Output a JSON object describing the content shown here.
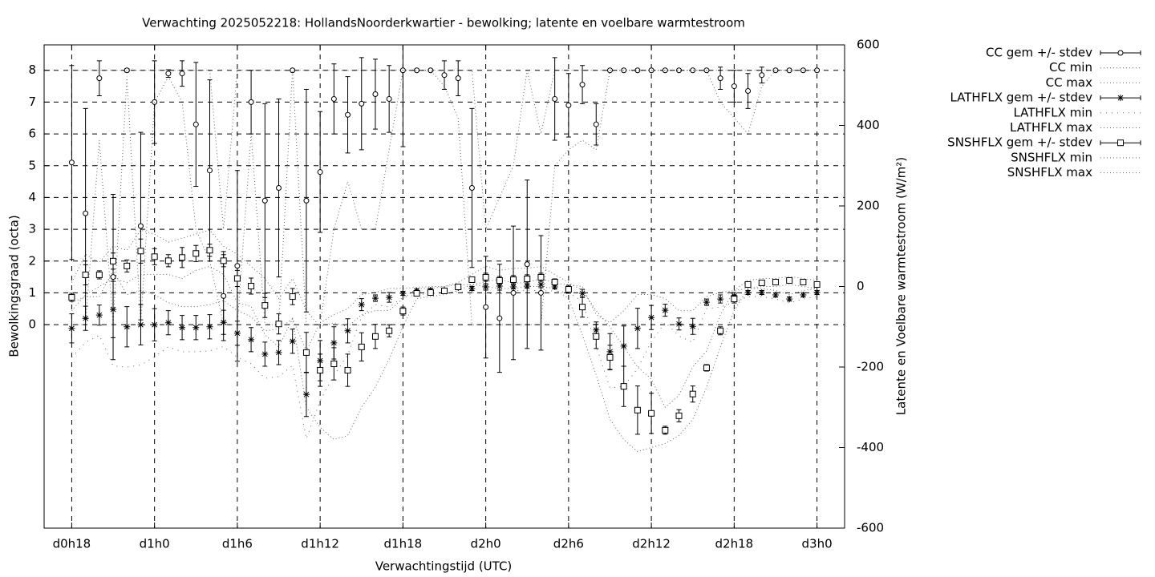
{
  "chart_data": {
    "type": "errorbar",
    "title": "Verwachting 2025052218: HollandsNoorderkwartier - bewolking; latente en voelbare warmtestroom",
    "x_label": "Verwachtingstijd (UTC)",
    "y_label": "Bewolkingsgraad (octa)",
    "y2_label": "Latente en Voelbare warmtestroom (W/m²)",
    "x": [
      18,
      19,
      20,
      21,
      22,
      23,
      24,
      25,
      26,
      27,
      28,
      29,
      30,
      31,
      32,
      33,
      34,
      35,
      36,
      37,
      38,
      39,
      40,
      41,
      42,
      43,
      44,
      45,
      46,
      47,
      48,
      49,
      50,
      51,
      52,
      53,
      54,
      55,
      56,
      57,
      58,
      59,
      60,
      61,
      62,
      63,
      64,
      65,
      66,
      67,
      68,
      69,
      70,
      71,
      72
    ],
    "xlim": [
      16,
      74
    ],
    "xticks": [
      {
        "value": 18,
        "label": "d0h18"
      },
      {
        "value": 24,
        "label": "d1h0"
      },
      {
        "value": 30,
        "label": "d1h6"
      },
      {
        "value": 36,
        "label": "d1h12"
      },
      {
        "value": 42,
        "label": "d1h18"
      },
      {
        "value": 48,
        "label": "d2h0"
      },
      {
        "value": 54,
        "label": "d2h6"
      },
      {
        "value": 60,
        "label": "d2h12"
      },
      {
        "value": 66,
        "label": "d2h18"
      },
      {
        "value": 72,
        "label": "d3h0"
      }
    ],
    "ylim": [
      -6.4,
      8.8
    ],
    "yticks": [
      0,
      1,
      2,
      3,
      4,
      5,
      6,
      7,
      8
    ],
    "y2lim": [
      -600,
      600
    ],
    "y2ticks": [
      -600,
      -400,
      -200,
      0,
      200,
      400,
      600
    ],
    "grid": true,
    "legend": "outside-top-right",
    "series": [
      {
        "name": "CC gem +/- stdev",
        "color": "#000000",
        "marker": "circle",
        "axis": "y",
        "values": [
          5.1,
          3.5,
          7.75,
          1.5,
          8.0,
          3.1,
          7.0,
          7.9,
          7.9,
          6.3,
          4.85,
          0.9,
          1.85,
          7.0,
          3.9,
          4.3,
          8.0,
          3.9,
          4.8,
          7.1,
          6.6,
          6.95,
          7.25,
          7.1,
          8.0,
          8.0,
          8.0,
          7.85,
          7.75,
          4.3,
          0.55,
          0.2,
          1.0,
          1.9,
          1.0,
          7.1,
          6.9,
          7.55,
          6.3,
          8,
          8,
          8,
          8,
          8,
          8,
          8,
          8,
          7.75,
          7.5,
          7.35,
          7.85,
          8,
          8,
          8,
          8
        ],
        "stdev": [
          3.05,
          3.3,
          0.55,
          2.6,
          0.05,
          2.95,
          1.3,
          0.12,
          0.4,
          1.95,
          2.85,
          1.4,
          3.0,
          1.0,
          3.05,
          2.8,
          0,
          3.5,
          1.9,
          1.1,
          1.2,
          1.45,
          1.1,
          1.05,
          2.4,
          0,
          0,
          0.45,
          0.55,
          2.5,
          1.6,
          1.7,
          2.1,
          2.65,
          1.8,
          1.3,
          1.0,
          0.6,
          0.65,
          0,
          0,
          0,
          0,
          0,
          0,
          0,
          0,
          0.35,
          0.5,
          0.55,
          0.25,
          0,
          0,
          0,
          0
        ]
      },
      {
        "name": "CC min",
        "color": "#000000",
        "line": "dotted",
        "axis": "y",
        "values": [
          0,
          0,
          5.8,
          0,
          7.8,
          0,
          7,
          7.8,
          7,
          3,
          2,
          0,
          0,
          6,
          0,
          0,
          8,
          0,
          0,
          3,
          4.5,
          3,
          3,
          5.5,
          8,
          8,
          8,
          7.5,
          6.5,
          0,
          0,
          0,
          0,
          0,
          0,
          5,
          5.5,
          5.8,
          5.5,
          8,
          8,
          8,
          8,
          8,
          8,
          8,
          8,
          7,
          6.5,
          6,
          7.5,
          8,
          8,
          8,
          8
        ]
      },
      {
        "name": "CC max",
        "color": "#000000",
        "line": "dotted",
        "axis": "y",
        "values": [
          8,
          8,
          8,
          8,
          8,
          8,
          8,
          8,
          8,
          8,
          8,
          3,
          8,
          8,
          8,
          8,
          8,
          8,
          8,
          8,
          8,
          8,
          8,
          8,
          8,
          8,
          8,
          8,
          8,
          8,
          3,
          4,
          5,
          8,
          6,
          8,
          8,
          8,
          8,
          8,
          8,
          8,
          8,
          8,
          8,
          8,
          8,
          8,
          8,
          8,
          8,
          8,
          8,
          8,
          8
        ]
      },
      {
        "name": "LATHFLX gem +/- stdev",
        "color": "#000000",
        "marker": "star",
        "axis": "y2",
        "values": [
          -104,
          -79,
          -71,
          -57,
          -100,
          -95,
          -95,
          -90,
          -102,
          -102,
          -100,
          -89,
          -116,
          -132,
          -168,
          -164,
          -136,
          -268,
          -184,
          -140,
          -110,
          -45,
          -29,
          -27,
          -17,
          -11,
          -9,
          -9,
          -3,
          -5,
          -1,
          1,
          -1,
          1,
          5,
          -1,
          -5,
          -17,
          -108,
          -162,
          -148,
          -104,
          -77,
          -59,
          -93,
          -99,
          -39,
          -31,
          -23,
          -15,
          -15,
          -21,
          -31,
          -21,
          -15
        ],
        "stdev": [
          36,
          30,
          25,
          70,
          50,
          50,
          40,
          30,
          30,
          30,
          30,
          30,
          30,
          30,
          30,
          30,
          30,
          55,
          50,
          40,
          30,
          15,
          8,
          12,
          5,
          5,
          4,
          4,
          5,
          5,
          8,
          10,
          5,
          5,
          8,
          5,
          5,
          10,
          20,
          45,
          50,
          50,
          30,
          15,
          15,
          20,
          8,
          10,
          8,
          5,
          5,
          5,
          5,
          5,
          5
        ]
      },
      {
        "name": "LATHFLX min",
        "color": "#000000",
        "line": "sparse",
        "axis": "y2",
        "values": [
          -176,
          -139,
          -121,
          -197,
          -200,
          -195,
          -175,
          -150,
          -162,
          -162,
          -160,
          -149,
          -176,
          -192,
          -228,
          -224,
          -196,
          -378,
          -284,
          -220,
          -170,
          -75,
          -45,
          -51,
          -27,
          -21,
          -17,
          -17,
          -13,
          -15,
          -17,
          -19,
          -11,
          -9,
          -11,
          -11,
          -15,
          -37,
          -148,
          -252,
          -248,
          -204,
          -137,
          -89,
          -123,
          -139,
          -55,
          -51,
          -39,
          -25,
          -25,
          -31,
          -41,
          -31,
          -25
        ]
      },
      {
        "name": "LATHFLX max",
        "color": "#000000",
        "line": "dotted",
        "axis": "y2",
        "values": [
          -40,
          -25,
          -25,
          40,
          -20,
          -10,
          -20,
          -40,
          -50,
          -50,
          -45,
          -35,
          -60,
          -75,
          -110,
          -105,
          -80,
          -160,
          -90,
          -70,
          -55,
          -20,
          -15,
          -5,
          -5,
          -2,
          0,
          0,
          5,
          4,
          12,
          18,
          8,
          10,
          20,
          8,
          4,
          0,
          -70,
          -90,
          -60,
          -20,
          -20,
          -30,
          -60,
          -60,
          -25,
          -15,
          -10,
          -5,
          -5,
          -10,
          -20,
          -10,
          -5
        ]
      },
      {
        "name": "SNSHFLX gem +/- stdev",
        "color": "#000000",
        "marker": "square",
        "axis": "y2",
        "values": [
          -27,
          29,
          29,
          63,
          51,
          88,
          74,
          64,
          72,
          82,
          90,
          64,
          20,
          1,
          -47,
          -93,
          -25,
          -164,
          -208,
          -192,
          -208,
          -150,
          -124,
          -110,
          -61,
          -17,
          -15,
          -11,
          -1,
          17,
          23,
          15,
          17,
          19,
          23,
          11,
          -7,
          -51,
          -124,
          -176,
          -248,
          -307,
          -315,
          -357,
          -321,
          -267,
          -202,
          -110,
          -31,
          5,
          9,
          11,
          15,
          11,
          5
        ],
        "stdev": [
          10,
          25,
          10,
          20,
          15,
          30,
          20,
          15,
          25,
          20,
          15,
          15,
          20,
          20,
          30,
          25,
          20,
          50,
          40,
          40,
          40,
          35,
          30,
          15,
          10,
          5,
          5,
          5,
          5,
          5,
          10,
          10,
          10,
          10,
          10,
          8,
          10,
          25,
          30,
          30,
          50,
          60,
          50,
          10,
          15,
          20,
          8,
          10,
          10,
          5,
          5,
          5,
          5,
          5,
          5
        ]
      },
      {
        "name": "SNSHFLX min",
        "color": "#000000",
        "line": "dotted",
        "axis": "y2",
        "values": [
          -60,
          -20,
          0,
          20,
          10,
          30,
          30,
          30,
          20,
          40,
          50,
          30,
          -40,
          -50,
          -120,
          -150,
          -80,
          -300,
          -350,
          -380,
          -370,
          -300,
          -250,
          -180,
          -100,
          -30,
          -25,
          -20,
          -10,
          5,
          0,
          -5,
          -5,
          0,
          0,
          -5,
          -30,
          -120,
          -220,
          -330,
          -380,
          -410,
          -400,
          -390,
          -370,
          -330,
          -250,
          -150,
          -60,
          -5,
          0,
          0,
          5,
          0,
          -5
        ]
      },
      {
        "name": "SNSHFLX max",
        "color": "#000000",
        "line": "dotted",
        "axis": "y2",
        "values": [
          10,
          80,
          60,
          100,
          90,
          140,
          130,
          110,
          120,
          130,
          140,
          100,
          80,
          50,
          20,
          -30,
          20,
          -60,
          -100,
          -90,
          -100,
          -70,
          -60,
          -60,
          -30,
          -5,
          -5,
          0,
          10,
          30,
          50,
          40,
          45,
          45,
          50,
          30,
          10,
          -10,
          -60,
          -100,
          -150,
          -200,
          -230,
          -300,
          -270,
          -200,
          -160,
          -70,
          -10,
          15,
          20,
          20,
          25,
          20,
          15
        ]
      }
    ]
  }
}
